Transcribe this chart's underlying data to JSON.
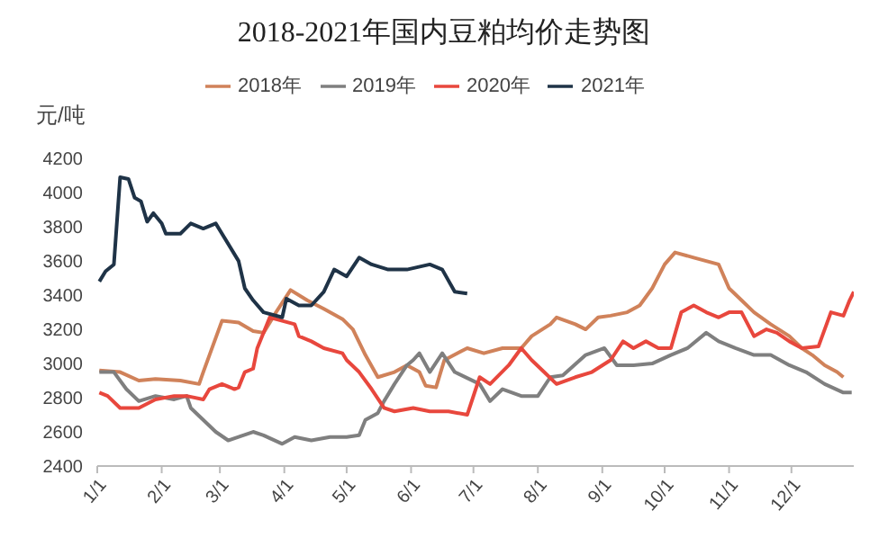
{
  "chart_data": {
    "type": "line",
    "title": "2018-2021年国内豆粕均价走势图",
    "ylabel": "元/吨",
    "legend": "top",
    "marker": "none",
    "line_style": "solid",
    "grid": false,
    "xlim": [
      "--01-01",
      "--12-31"
    ],
    "xticks": [
      {
        "value": "--01-01",
        "label": "1/1"
      },
      {
        "value": "--02-01",
        "label": "2/1"
      },
      {
        "value": "--03-01",
        "label": "3/1"
      },
      {
        "value": "--04-01",
        "label": "4/1"
      },
      {
        "value": "--05-01",
        "label": "5/1"
      },
      {
        "value": "--06-01",
        "label": "6/1"
      },
      {
        "value": "--07-01",
        "label": "7/1"
      },
      {
        "value": "--08-01",
        "label": "8/1"
      },
      {
        "value": "--09-01",
        "label": "9/1"
      },
      {
        "value": "--10-01",
        "label": "10/1"
      },
      {
        "value": "--11-01",
        "label": "11/1"
      },
      {
        "value": "--12-01",
        "label": "12/1"
      }
    ],
    "ylim": [
      2400,
      4200
    ],
    "yticks": [
      2400,
      2600,
      2800,
      3000,
      3200,
      3400,
      3600,
      3800,
      4000,
      4200
    ],
    "series": [
      {
        "name": "2018年",
        "color": "#d0825a",
        "x": [
          "--01-02",
          "--01-12",
          "--01-21",
          "--01-29",
          "--02-10",
          "--02-19",
          "--02-21",
          "--02-24",
          "--03-02",
          "--03-10",
          "--03-17",
          "--03-22",
          "--03-28",
          "--04-04",
          "--04-12",
          "--04-20",
          "--04-29",
          "--05-04",
          "--05-10",
          "--05-16",
          "--05-24",
          "--05-30",
          "--06-05",
          "--06-08",
          "--06-13",
          "--06-17",
          "--06-28",
          "--07-06",
          "--07-15",
          "--07-24",
          "--07-29",
          "--08-07",
          "--08-10",
          "--08-19",
          "--08-24",
          "--08-30",
          "--09-05",
          "--09-13",
          "--09-19",
          "--09-25",
          "--10-01",
          "--10-06",
          "--10-15",
          "--10-21",
          "--10-27",
          "--11-01",
          "--11-07",
          "--11-13",
          "--11-21",
          "--11-30",
          "--12-06",
          "--12-11",
          "--12-17",
          "--12-23",
          "--12-26"
        ],
        "values": [
          2960,
          2950,
          2900,
          2910,
          2900,
          2880,
          2950,
          3050,
          3250,
          3240,
          3190,
          3180,
          3300,
          3430,
          3370,
          3320,
          3260,
          3200,
          3050,
          2920,
          2950,
          2990,
          2950,
          2870,
          2860,
          3020,
          3090,
          3060,
          3090,
          3090,
          3160,
          3230,
          3270,
          3230,
          3200,
          3270,
          3280,
          3300,
          3340,
          3440,
          3580,
          3650,
          3620,
          3600,
          3580,
          3440,
          3370,
          3300,
          3230,
          3160,
          3090,
          3050,
          2990,
          2950,
          2920
        ]
      },
      {
        "name": "2019年",
        "color": "#7f7f7f",
        "x": [
          "--01-02",
          "--01-09",
          "--01-15",
          "--01-21",
          "--01-29",
          "--02-07",
          "--02-13",
          "--02-15",
          "--02-21",
          "--02-27",
          "--03-05",
          "--03-10",
          "--03-17",
          "--03-22",
          "--03-31",
          "--04-06",
          "--04-14",
          "--04-23",
          "--05-01",
          "--05-07",
          "--05-10",
          "--05-16",
          "--05-19",
          "--05-24",
          "--05-30",
          "--06-02",
          "--06-05",
          "--06-10",
          "--06-16",
          "--06-22",
          "--07-04",
          "--07-09",
          "--07-15",
          "--07-24",
          "--08-01",
          "--08-07",
          "--08-13",
          "--08-24",
          "--09-02",
          "--09-08",
          "--09-16",
          "--09-25",
          "--10-04",
          "--10-12",
          "--10-21",
          "--10-27",
          "--11-04",
          "--11-13",
          "--11-21",
          "--11-30",
          "--12-08",
          "--12-17",
          "--12-26",
          "--12-30"
        ],
        "values": [
          2950,
          2950,
          2850,
          2780,
          2810,
          2790,
          2810,
          2740,
          2670,
          2600,
          2550,
          2570,
          2600,
          2580,
          2530,
          2570,
          2550,
          2570,
          2570,
          2580,
          2670,
          2710,
          2780,
          2880,
          2990,
          3020,
          3060,
          2950,
          3060,
          2950,
          2880,
          2780,
          2850,
          2810,
          2810,
          2920,
          2930,
          3050,
          3090,
          2990,
          2990,
          3000,
          3050,
          3090,
          3180,
          3130,
          3090,
          3050,
          3050,
          2990,
          2950,
          2880,
          2830,
          2830
        ]
      },
      {
        "name": "2020年",
        "color": "#e8473d",
        "x": [
          "--01-02",
          "--01-06",
          "--01-12",
          "--01-21",
          "--01-29",
          "--02-07",
          "--02-13",
          "--02-21",
          "--02-24",
          "--03-02",
          "--03-08",
          "--03-10",
          "--03-13",
          "--03-17",
          "--03-19",
          "--03-25",
          "--03-31",
          "--04-06",
          "--04-08",
          "--04-14",
          "--04-20",
          "--04-29",
          "--05-01",
          "--05-07",
          "--05-13",
          "--05-19",
          "--05-24",
          "--06-02",
          "--06-10",
          "--06-19",
          "--06-28",
          "--07-04",
          "--07-09",
          "--07-18",
          "--07-24",
          "--07-29",
          "--08-04",
          "--08-10",
          "--08-19",
          "--08-27",
          "--09-05",
          "--09-11",
          "--09-16",
          "--09-22",
          "--09-28",
          "--10-04",
          "--10-09",
          "--10-15",
          "--10-21",
          "--10-27",
          "--11-01",
          "--11-07",
          "--11-13",
          "--11-19",
          "--11-24",
          "--11-30",
          "--12-06",
          "--12-14",
          "--12-20",
          "--12-26",
          "--12-29",
          "--12-31"
        ],
        "values": [
          2830,
          2810,
          2740,
          2740,
          2790,
          2810,
          2810,
          2790,
          2850,
          2880,
          2850,
          2860,
          2950,
          2970,
          3090,
          3270,
          3250,
          3230,
          3160,
          3130,
          3090,
          3060,
          3020,
          2950,
          2850,
          2740,
          2720,
          2740,
          2720,
          2720,
          2700,
          2920,
          2880,
          2990,
          3090,
          3020,
          2950,
          2880,
          2920,
          2950,
          3020,
          3130,
          3090,
          3130,
          3090,
          3090,
          3300,
          3340,
          3300,
          3270,
          3300,
          3300,
          3160,
          3200,
          3180,
          3130,
          3090,
          3100,
          3300,
          3280,
          3370,
          3420
        ]
      },
      {
        "name": "2021年",
        "color": "#1f3347",
        "x": [
          "--01-02",
          "--01-05",
          "--01-09",
          "--01-12",
          "--01-16",
          "--01-19",
          "--01-22",
          "--01-25",
          "--01-28",
          "--02-01",
          "--02-03",
          "--02-10",
          "--02-15",
          "--02-21",
          "--02-27",
          "--03-10",
          "--03-13",
          "--03-17",
          "--03-22",
          "--03-31",
          "--04-02",
          "--04-08",
          "--04-14",
          "--04-20",
          "--04-25",
          "--05-01",
          "--05-07",
          "--05-13",
          "--05-21",
          "--05-30",
          "--06-10",
          "--06-16",
          "--06-22",
          "--06-28"
        ],
        "values": [
          3480,
          3540,
          3580,
          4090,
          4080,
          3970,
          3950,
          3830,
          3880,
          3820,
          3760,
          3760,
          3820,
          3790,
          3820,
          3600,
          3440,
          3370,
          3300,
          3270,
          3380,
          3340,
          3340,
          3420,
          3550,
          3510,
          3620,
          3580,
          3550,
          3550,
          3580,
          3550,
          3420,
          3410
        ]
      }
    ]
  }
}
